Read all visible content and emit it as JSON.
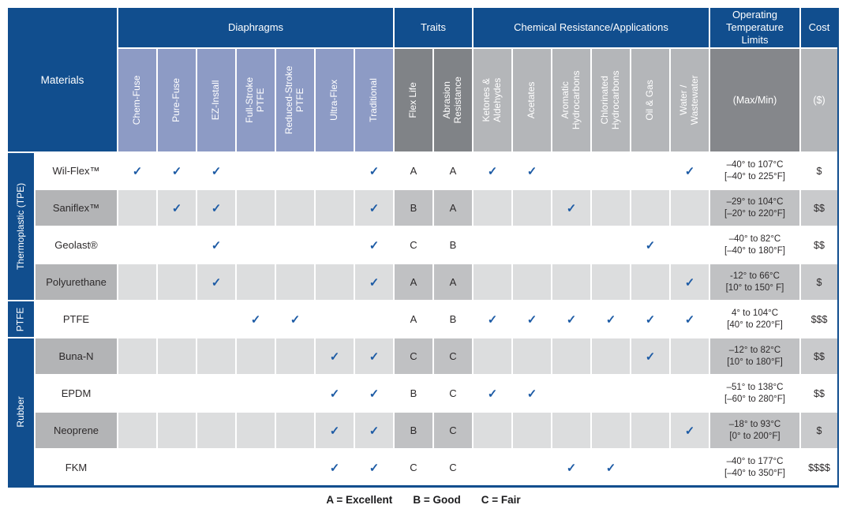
{
  "corner_label": "Materials",
  "legend": {
    "items": [
      "A = Excellent",
      "B = Good",
      "C = Fair"
    ]
  },
  "colors": {
    "navy": "#114e8e",
    "periwinkle": "#8d9bc5",
    "traits_subheader_gray": "#808387",
    "chem_subheader_gray": "#b4b6b9",
    "temp_subheader_gray": "#85878b",
    "gray_row_light": "#dcddde",
    "gray_row_mid": "#c0c1c3",
    "gray_row_name": "#b3b4b6",
    "gray_row_cost": "#c9cacc",
    "check_blue": "#1d5ba5",
    "text_dark": "#2d2a2b"
  },
  "header_groups": [
    {
      "label": "Diaphragms",
      "span": 7
    },
    {
      "label": "Traits",
      "span": 2
    },
    {
      "label": "Chemical Resistance/Applications",
      "span": 6
    },
    {
      "label": "Operating\nTemperature\nLimits",
      "span": 1
    },
    {
      "label": "Cost",
      "span": 1
    }
  ],
  "columns": [
    {
      "key": "chem_fuse",
      "label": "Chem-Fuse",
      "band": "diaphragms",
      "rotated": true
    },
    {
      "key": "pure_fuse",
      "label": "Pure-Fuse",
      "band": "diaphragms",
      "rotated": true
    },
    {
      "key": "ez_install",
      "label": "EZ-Install",
      "band": "diaphragms",
      "rotated": true
    },
    {
      "key": "full_stroke",
      "label": "Full-Stroke\nPTFE",
      "band": "diaphragms",
      "rotated": true
    },
    {
      "key": "reduced_stroke",
      "label": "Reduced-Stroke\nPTFE",
      "band": "diaphragms",
      "rotated": true
    },
    {
      "key": "ultra_flex",
      "label": "Ultra-Flex",
      "band": "diaphragms",
      "rotated": true
    },
    {
      "key": "traditional",
      "label": "Traditional",
      "band": "diaphragms",
      "rotated": true
    },
    {
      "key": "flex_life",
      "label": "Flex Life",
      "band": "traits",
      "rotated": true
    },
    {
      "key": "abrasion",
      "label": "Abrasion\nResistance",
      "band": "traits",
      "rotated": true
    },
    {
      "key": "ketones",
      "label": "Ketones &\nAldehydes",
      "band": "chem",
      "rotated": true
    },
    {
      "key": "acetates",
      "label": "Acetates",
      "band": "chem",
      "rotated": true
    },
    {
      "key": "aromatic",
      "label": "Aromatic\nHydrocarbons",
      "band": "chem",
      "rotated": true
    },
    {
      "key": "chlorinated",
      "label": "Chlorinated\nHydrocarbons",
      "band": "chem",
      "rotated": true
    },
    {
      "key": "oil_gas",
      "label": "Oil & Gas",
      "band": "chem",
      "rotated": true
    },
    {
      "key": "water",
      "label": "Water /\nWastewater",
      "band": "chem",
      "rotated": true
    },
    {
      "key": "temp",
      "label": "(Max/Min)",
      "band": "temp",
      "rotated": false
    },
    {
      "key": "cost",
      "label": "($)",
      "band": "cost",
      "rotated": false
    }
  ],
  "row_groups": [
    {
      "label": "Thermoplastic (TPE)",
      "rows": [
        {
          "material": "Wil-Flex™",
          "shade": "white",
          "values": {
            "chem_fuse": "✓",
            "pure_fuse": "✓",
            "ez_install": "✓",
            "traditional": "✓",
            "flex_life": "A",
            "abrasion": "A",
            "ketones": "✓",
            "acetates": "✓",
            "water": "✓",
            "temp": "–40° to 107°C\n[–40° to 225°F]",
            "cost": "$"
          }
        },
        {
          "material": "Saniflex™",
          "shade": "gray",
          "values": {
            "pure_fuse": "✓",
            "ez_install": "✓",
            "traditional": "✓",
            "flex_life": "B",
            "abrasion": "A",
            "aromatic": "✓",
            "temp": "–29° to 104°C\n[–20° to 220°F]",
            "cost": "$$"
          }
        },
        {
          "material": "Geolast®",
          "shade": "white",
          "values": {
            "ez_install": "✓",
            "traditional": "✓",
            "flex_life": "C",
            "abrasion": "B",
            "oil_gas": "✓",
            "temp": "–40° to 82°C\n[–40° to 180°F]",
            "cost": "$$"
          }
        },
        {
          "material": "Polyurethane",
          "shade": "gray",
          "values": {
            "ez_install": "✓",
            "traditional": "✓",
            "flex_life": "A",
            "abrasion": "A",
            "water": "✓",
            "temp": "-12° to 66°C\n[10° to 150° F]",
            "cost": "$"
          }
        }
      ]
    },
    {
      "label": "PTFE",
      "rows": [
        {
          "material": "PTFE",
          "shade": "white",
          "values": {
            "full_stroke": "✓",
            "reduced_stroke": "✓",
            "flex_life": "A",
            "abrasion": "B",
            "ketones": "✓",
            "acetates": "✓",
            "aromatic": "✓",
            "chlorinated": "✓",
            "oil_gas": "✓",
            "water": "✓",
            "temp": "4° to 104°C\n[40° to 220°F]",
            "cost": "$$$"
          }
        }
      ]
    },
    {
      "label": "Rubber",
      "rows": [
        {
          "material": "Buna-N",
          "shade": "gray",
          "values": {
            "ultra_flex": "✓",
            "traditional": "✓",
            "flex_life": "C",
            "abrasion": "C",
            "oil_gas": "✓",
            "temp": "–12° to 82°C\n[10° to 180°F]",
            "cost": "$$"
          }
        },
        {
          "material": "EPDM",
          "shade": "white",
          "values": {
            "ultra_flex": "✓",
            "traditional": "✓",
            "flex_life": "B",
            "abrasion": "C",
            "ketones": "✓",
            "acetates": "✓",
            "temp": "–51° to 138°C\n[–60° to 280°F]",
            "cost": "$$"
          }
        },
        {
          "material": "Neoprene",
          "shade": "gray",
          "values": {
            "ultra_flex": "✓",
            "traditional": "✓",
            "flex_life": "B",
            "abrasion": "C",
            "water": "✓",
            "temp": "–18° to 93°C\n[0° to 200°F]",
            "cost": "$"
          }
        },
        {
          "material": "FKM",
          "shade": "white",
          "values": {
            "ultra_flex": "✓",
            "traditional": "✓",
            "flex_life": "C",
            "abrasion": "C",
            "aromatic": "✓",
            "chlorinated": "✓",
            "temp": "–40° to 177°C\n[–40° to 350°F]",
            "cost": "$$$$"
          }
        }
      ]
    }
  ]
}
